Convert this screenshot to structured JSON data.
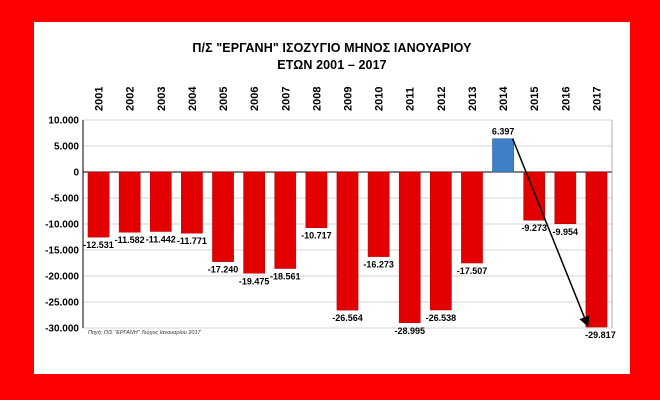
{
  "colors": {
    "frame": "#ff0000",
    "panel": "#ffffff",
    "negative_bar": "#e30000",
    "positive_bar": "#3f7fc8",
    "grid": "#c8c8c8",
    "arrow": "#000000"
  },
  "source_note": "Πηγή: Π/Σ \"ΕΡΓΑΝΗ\" Τεύχος Ιανουαρίου 2017",
  "chart_data": {
    "type": "bar",
    "title": "Π/Σ \"ΕΡΓΑΝΗ\" ΙΣΟΖΥΓΙΟ ΜΗΝΟΣ ΙΑΝΟΥΑΡΙΟΥ",
    "subtitle": "ΕΤΩΝ 2001 – 2017",
    "xlabel": "",
    "ylabel": "",
    "categories": [
      "2001",
      "2002",
      "2003",
      "2004",
      "2005",
      "2006",
      "2007",
      "2008",
      "2009",
      "2010",
      "2011",
      "2012",
      "2013",
      "2014",
      "2015",
      "2016",
      "2017"
    ],
    "values": [
      -12531,
      -11582,
      -11442,
      -11771,
      -17240,
      -19475,
      -18561,
      -10717,
      -26564,
      -16273,
      -28995,
      -26538,
      -17507,
      6397,
      -9273,
      -9954,
      -29817
    ],
    "value_labels": [
      "-12.531",
      "-11.582",
      "-11.442",
      "-11.771",
      "-17.240",
      "-19.475",
      "-18.561",
      "-10.717",
      "-26.564",
      "-16.273",
      "-28.995",
      "-26.538",
      "-17.507",
      "6.397",
      "-9.273",
      "-9.954",
      "-29.817"
    ],
    "ylim": [
      -30000,
      10000
    ],
    "yticks": [
      10000,
      5000,
      0,
      -5000,
      -10000,
      -15000,
      -20000,
      -25000,
      -30000
    ],
    "ytick_labels": [
      "10.000",
      "5.000",
      "0",
      "-5.000",
      "-10.000",
      "-15.000",
      "-20.000",
      "-25.000",
      "-30.000"
    ],
    "grid": true,
    "legend": "none",
    "annotation": {
      "type": "arrow",
      "from_category": "2014",
      "to_category": "2017"
    }
  }
}
